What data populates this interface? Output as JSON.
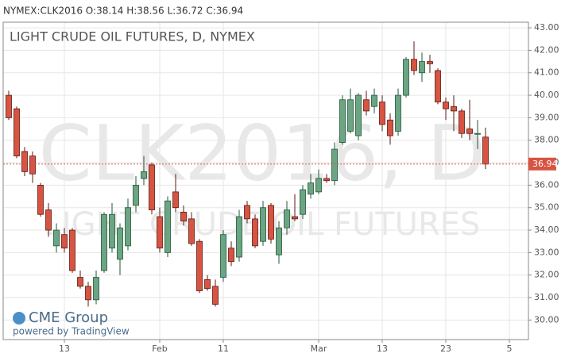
{
  "chart_data": {
    "type": "candlestick",
    "header": "NYMEX:CLK2016 O:38.14 H:38.56 L:36.72 C:36.94",
    "title": "LIGHT CRUDE OIL FUTURES, D, NYMEX",
    "watermark": "CLK2016, D",
    "watermark_subtitle": "LIGHT CRUDE OIL FUTURES",
    "brand": "CME Group",
    "brand_note": "powered by TradingView",
    "up_color": "#6ba583",
    "down_color": "#d75442",
    "last_price": 36.94,
    "last_price_color": "#d75442",
    "grid": true,
    "categories": [
      null,
      null,
      null,
      null,
      null,
      null,
      null,
      null,
      null,
      null,
      null,
      null,
      null,
      null,
      null,
      null,
      null,
      null,
      null,
      null,
      null,
      null,
      null,
      null,
      null,
      null,
      null,
      null,
      null,
      null,
      null,
      null,
      null,
      null,
      null,
      null,
      null,
      null,
      null,
      null,
      null,
      null,
      null,
      null,
      null,
      null,
      null,
      null,
      null,
      null,
      null,
      null,
      null,
      null,
      null,
      null,
      null,
      null,
      null,
      null,
      null
    ],
    "open": [
      40.0,
      39.4,
      37.5,
      37.3,
      36.0,
      34.9,
      33.3,
      33.8,
      34.0,
      31.9,
      31.5,
      30.9,
      32.2,
      33.2,
      32.7,
      33.3,
      35.1,
      36.3,
      36.9,
      34.6,
      33.0,
      35.7,
      34.8,
      34.5,
      33.5,
      31.8,
      31.5,
      31.9,
      33.2,
      32.8,
      35.1,
      34.5,
      33.5,
      35.1,
      32.9,
      34.1,
      34.6,
      34.7,
      35.6,
      35.7,
      36.3,
      36.2,
      37.9,
      38.4,
      38.2,
      39.8,
      39.5,
      39.7,
      38.9,
      38.4,
      40.0,
      41.6,
      41.0,
      41.5,
      41.1,
      39.7,
      39.5,
      39.3,
      38.5,
      38.3,
      38.14
    ],
    "high": [
      40.2,
      39.5,
      37.7,
      37.5,
      36.1,
      35.2,
      34.3,
      34.1,
      34.1,
      32.2,
      31.7,
      32.2,
      34.8,
      35.2,
      34.3,
      35.4,
      36.4,
      37.3,
      37.0,
      35.0,
      35.5,
      36.5,
      35.1,
      34.8,
      33.6,
      32.0,
      31.8,
      34.0,
      33.5,
      34.9,
      35.3,
      34.7,
      35.3,
      35.2,
      34.4,
      35.3,
      35.6,
      36.0,
      36.5,
      36.7,
      36.5,
      37.9,
      40.0,
      40.3,
      40.1,
      40.2,
      40.3,
      40.0,
      39.2,
      40.3,
      41.7,
      42.4,
      41.9,
      41.8,
      41.2,
      39.9,
      40.0,
      39.4,
      39.8,
      38.9,
      38.56
    ],
    "low": [
      38.9,
      37.2,
      36.4,
      36.1,
      34.6,
      33.7,
      33.0,
      33.0,
      32.1,
      31.4,
      30.6,
      30.7,
      32.1,
      33.0,
      32.0,
      33.1,
      34.8,
      36.0,
      34.7,
      33.0,
      32.8,
      34.8,
      34.2,
      33.3,
      31.2,
      31.3,
      30.6,
      31.7,
      32.4,
      32.6,
      34.3,
      33.2,
      33.3,
      33.4,
      32.5,
      33.8,
      34.4,
      34.5,
      35.4,
      35.6,
      36.1,
      36.0,
      37.8,
      38.3,
      38.0,
      39.1,
      39.2,
      38.4,
      37.8,
      38.2,
      39.9,
      40.9,
      40.6,
      41.0,
      39.6,
      38.9,
      38.4,
      38.1,
      38.0,
      37.6,
      36.72
    ],
    "close": [
      39.0,
      37.3,
      36.6,
      36.5,
      34.7,
      34.0,
      34.0,
      33.2,
      32.2,
      31.5,
      30.9,
      31.9,
      34.7,
      34.7,
      34.1,
      35.0,
      36.0,
      36.6,
      34.9,
      33.2,
      35.3,
      35.0,
      34.4,
      33.4,
      31.3,
      31.4,
      30.7,
      33.8,
      32.6,
      34.6,
      34.5,
      33.3,
      35.0,
      33.6,
      34.1,
      34.9,
      34.5,
      35.8,
      36.1,
      36.3,
      36.2,
      37.6,
      39.8,
      39.8,
      40.0,
      39.3,
      40.0,
      38.7,
      38.2,
      40.0,
      41.6,
      41.1,
      41.5,
      41.4,
      39.7,
      39.4,
      39.3,
      38.3,
      38.3,
      38.3,
      36.94
    ],
    "xlim": [
      -0.7,
      65.4
    ],
    "xticks": [
      {
        "value": 7,
        "label": "13"
      },
      {
        "value": 19,
        "label": "Feb"
      },
      {
        "value": 27,
        "label": "11"
      },
      {
        "value": 39,
        "label": "Mar"
      },
      {
        "value": 47,
        "label": "13"
      },
      {
        "value": 55,
        "label": "23"
      },
      {
        "value": 63,
        "label": "5"
      }
    ],
    "ylim": [
      29.13,
      43.25
    ],
    "yticks": [
      {
        "value": 30,
        "label": "30.00"
      },
      {
        "value": 31,
        "label": "31.00"
      },
      {
        "value": 32,
        "label": "32.00"
      },
      {
        "value": 33,
        "label": "33.00"
      },
      {
        "value": 34,
        "label": "34.00"
      },
      {
        "value": 35,
        "label": "35.00"
      },
      {
        "value": 36,
        "label": "36.00"
      },
      {
        "value": 37,
        "label": "37.00"
      },
      {
        "value": 38,
        "label": "38.00"
      },
      {
        "value": 39,
        "label": "39.00"
      },
      {
        "value": 40,
        "label": "40.00"
      },
      {
        "value": 41,
        "label": "41.00"
      },
      {
        "value": 42,
        "label": "42.00"
      },
      {
        "value": 43,
        "label": "43.00"
      }
    ]
  }
}
